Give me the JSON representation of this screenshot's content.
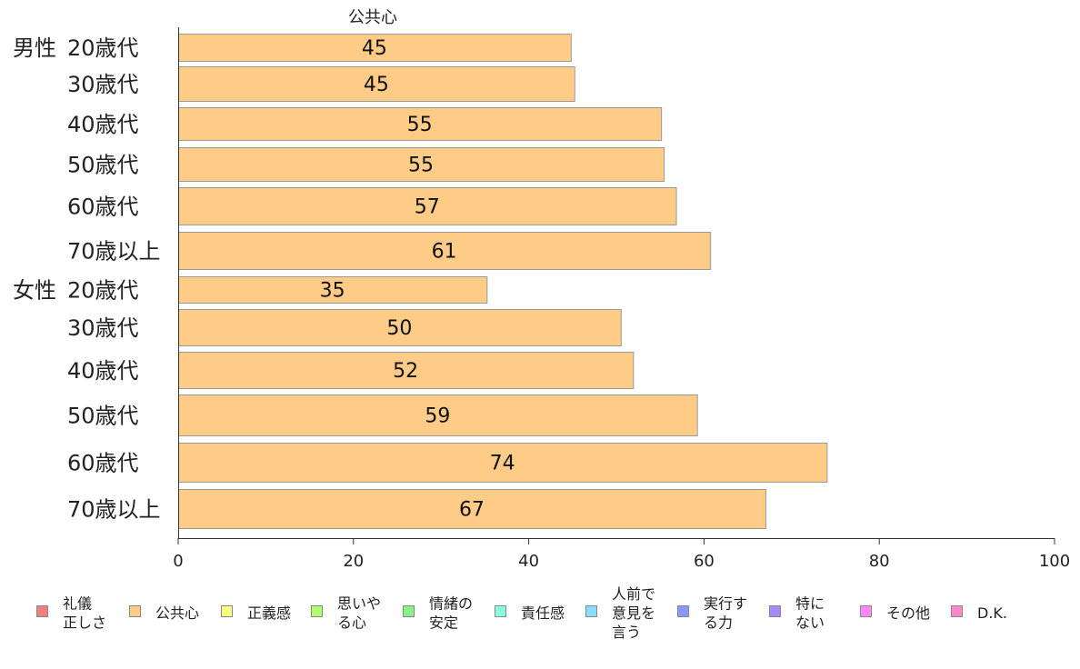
{
  "chart_data": {
    "type": "bar",
    "orientation": "horizontal",
    "title": "",
    "xlabel": "",
    "ylabel": "",
    "xlim": [
      0,
      100
    ],
    "xticks": [
      0,
      20,
      40,
      60,
      80,
      100
    ],
    "grid": false,
    "legend_position": "bottom",
    "groups": [
      {
        "label": "男性",
        "categories": [
          "20歳代",
          "30歳代",
          "40歳代",
          "50歳代",
          "60歳代",
          "70歳以上"
        ]
      },
      {
        "label": "女性",
        "categories": [
          "20歳代",
          "30歳代",
          "40歳代",
          "50歳代",
          "60歳代",
          "70歳以上"
        ]
      }
    ],
    "categories": [
      "20歳代",
      "30歳代",
      "40歳代",
      "50歳代",
      "60歳代",
      "70歳以上",
      "20歳代",
      "30歳代",
      "40歳代",
      "50歳代",
      "60歳代",
      "70歳以上"
    ],
    "series": [
      {
        "name": "公共心",
        "color": "#FFCC88",
        "values": [
          44.8,
          45.2,
          55.1,
          55.4,
          56.8,
          60.7,
          35.2,
          50.5,
          51.9,
          59.2,
          74.0,
          67.0
        ],
        "labels": [
          "45",
          "45",
          "55",
          "55",
          "57",
          "61",
          "35",
          "50",
          "52",
          "59",
          "74",
          "67"
        ]
      }
    ],
    "legend": [
      {
        "label": "礼儀\n正しさ",
        "color": "#F08080"
      },
      {
        "label": "公共心",
        "color": "#FFCC88"
      },
      {
        "label": "正義感",
        "color": "#FFFF80"
      },
      {
        "label": "思いや\nる心",
        "color": "#B0FF70"
      },
      {
        "label": "情緒の\n安定",
        "color": "#88F088"
      },
      {
        "label": "責任感",
        "color": "#88FFDD"
      },
      {
        "label": "人前で\n意見を\n言う",
        "color": "#88DDFF"
      },
      {
        "label": "実行す\nる力",
        "color": "#8899FF"
      },
      {
        "label": "特に\nない",
        "color": "#AA88FF"
      },
      {
        "label": "その他",
        "color": "#FF88FF"
      },
      {
        "label": "D.K.",
        "color": "#FF88CC"
      }
    ]
  }
}
